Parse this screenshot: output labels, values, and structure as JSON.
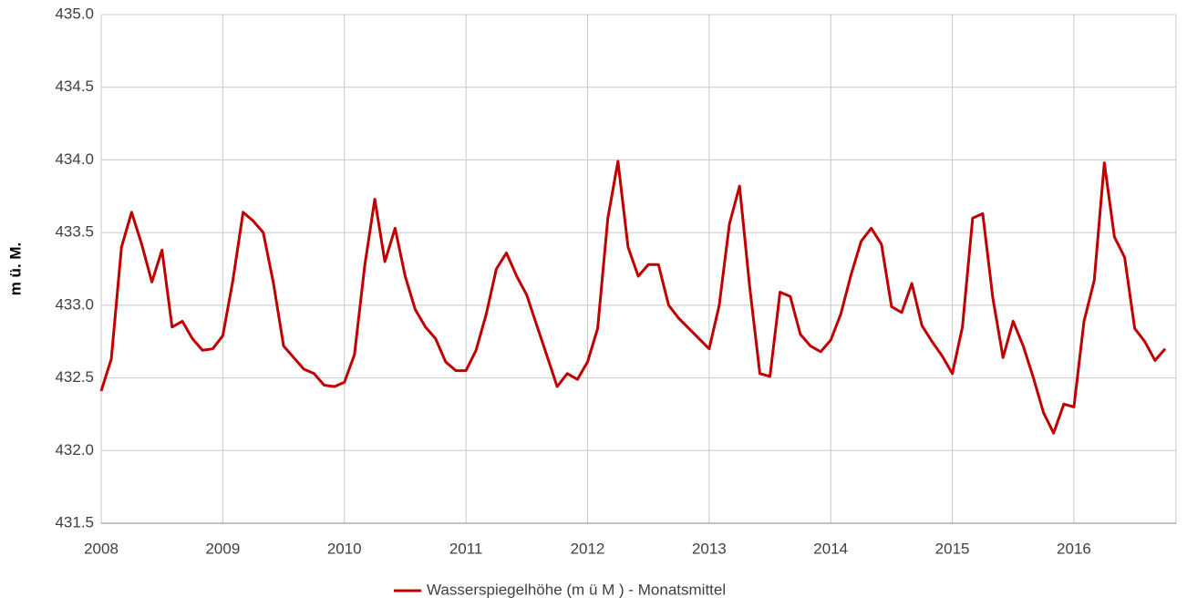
{
  "chart_data": {
    "type": "line",
    "y_label": "m ü. M.",
    "x": [
      2008,
      2008.083,
      2008.167,
      2008.25,
      2008.333,
      2008.417,
      2008.5,
      2008.583,
      2008.667,
      2008.75,
      2008.833,
      2008.917,
      2009,
      2009.083,
      2009.167,
      2009.25,
      2009.333,
      2009.417,
      2009.5,
      2009.583,
      2009.667,
      2009.75,
      2009.833,
      2009.917,
      2010,
      2010.083,
      2010.167,
      2010.25,
      2010.333,
      2010.417,
      2010.5,
      2010.583,
      2010.667,
      2010.75,
      2010.833,
      2010.917,
      2011,
      2011.083,
      2011.167,
      2011.25,
      2011.333,
      2011.417,
      2011.5,
      2011.583,
      2011.667,
      2011.75,
      2011.833,
      2011.917,
      2012,
      2012.083,
      2012.167,
      2012.25,
      2012.333,
      2012.417,
      2012.5,
      2012.583,
      2012.667,
      2012.75,
      2012.833,
      2012.917,
      2013,
      2013.083,
      2013.167,
      2013.25,
      2013.333,
      2013.417,
      2013.5,
      2013.583,
      2013.667,
      2013.75,
      2013.833,
      2013.917,
      2014,
      2014.083,
      2014.167,
      2014.25,
      2014.333,
      2014.417,
      2014.5,
      2014.583,
      2014.667,
      2014.75,
      2014.833,
      2014.917,
      2015,
      2015.083,
      2015.167,
      2015.25,
      2015.333,
      2015.417,
      2015.5,
      2015.583,
      2015.667,
      2015.75,
      2015.833,
      2015.917,
      2016,
      2016.083,
      2016.167,
      2016.25,
      2016.333,
      2016.417,
      2016.5,
      2016.583,
      2016.667,
      2016.75
    ],
    "series": [
      {
        "name": "Wasserspiegelhöhe (m ü M ) - Monatsmittel",
        "color": "#c00000",
        "values": [
          432.41,
          432.63,
          433.4,
          433.64,
          433.42,
          433.16,
          433.38,
          432.85,
          432.89,
          432.77,
          432.69,
          432.7,
          432.79,
          433.17,
          433.64,
          433.58,
          433.5,
          433.15,
          432.72,
          432.64,
          432.56,
          432.53,
          432.45,
          432.44,
          432.47,
          432.66,
          433.27,
          433.73,
          433.3,
          433.53,
          433.2,
          432.97,
          432.85,
          432.77,
          432.61,
          432.55,
          432.55,
          432.69,
          432.94,
          433.25,
          433.36,
          433.2,
          433.07,
          432.86,
          432.65,
          432.44,
          432.53,
          432.49,
          432.61,
          432.84,
          433.6,
          433.99,
          433.4,
          433.2,
          433.28,
          433.28,
          433.0,
          432.91,
          432.84,
          432.77,
          432.7,
          433.0,
          433.56,
          433.82,
          433.13,
          432.53,
          432.51,
          433.09,
          433.06,
          432.8,
          432.72,
          432.68,
          432.76,
          432.94,
          433.21,
          433.44,
          433.53,
          433.42,
          432.99,
          432.95,
          433.15,
          432.86,
          432.75,
          432.65,
          432.53,
          432.85,
          433.6,
          433.63,
          433.05,
          432.64,
          432.89,
          432.72,
          432.5,
          432.26,
          432.12,
          432.32,
          432.3,
          432.89,
          433.17,
          433.98,
          433.47,
          433.33,
          432.84,
          432.75,
          432.62,
          432.7
        ]
      }
    ],
    "xlim": [
      2008,
      2016.84
    ],
    "xticks": [
      2008,
      2009,
      2010,
      2011,
      2012,
      2013,
      2014,
      2015,
      2016
    ],
    "ylim": [
      431.5,
      435
    ],
    "yticks": [
      {
        "value": 431.5,
        "label": "431.5"
      },
      {
        "value": 432,
        "label": "432.0"
      },
      {
        "value": 432.5,
        "label": "432.5"
      },
      {
        "value": 433,
        "label": "433.0"
      },
      {
        "value": 433.5,
        "label": "433.5"
      },
      {
        "value": 434,
        "label": "434.0"
      },
      {
        "value": 434.5,
        "label": "434.5"
      },
      {
        "value": 435,
        "label": "435.0"
      }
    ],
    "grid": true,
    "legend": "bottom"
  }
}
